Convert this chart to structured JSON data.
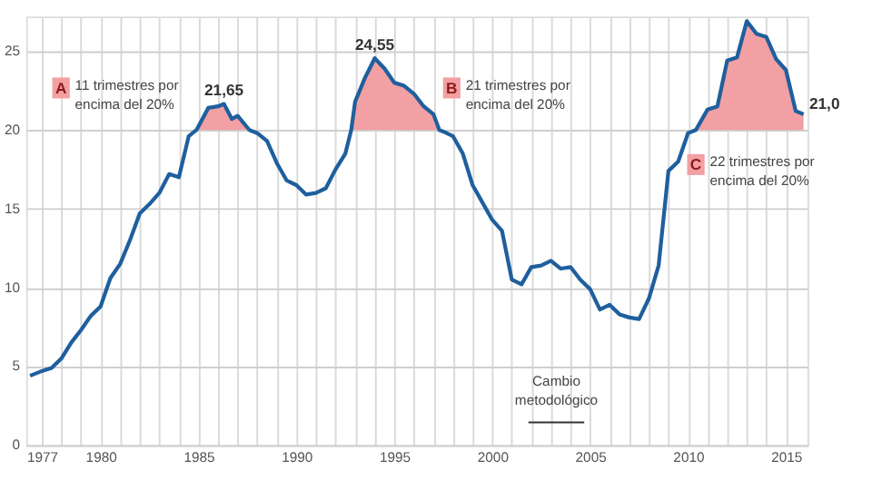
{
  "chart_data": {
    "type": "line",
    "x": [
      1976.4,
      1977.0,
      1977.5,
      1978.0,
      1978.5,
      1979.0,
      1979.5,
      1980.0,
      1980.5,
      1981.0,
      1981.5,
      1982.0,
      1982.5,
      1983.0,
      1983.5,
      1984.0,
      1984.5,
      1984.9,
      1985.5,
      1986.0,
      1986.3,
      1986.7,
      1987.0,
      1987.6,
      1988.0,
      1988.5,
      1989.0,
      1989.5,
      1990.0,
      1990.5,
      1991.0,
      1991.5,
      1992.0,
      1992.5,
      1992.8,
      1993.0,
      1993.5,
      1994.0,
      1994.5,
      1995.0,
      1995.5,
      1996.0,
      1996.5,
      1997.0,
      1997.3,
      1997.5,
      1998.0,
      1998.5,
      1999.0,
      1999.5,
      2000.0,
      2000.5,
      2001.0,
      2001.5,
      2002.0,
      2002.5,
      2003.0,
      2003.5,
      2004.0,
      2004.5,
      2005.0,
      2005.5,
      2006.0,
      2006.5,
      2007.0,
      2007.5,
      2008.0,
      2008.5,
      2009.0,
      2009.5,
      2010.0,
      2010.4,
      2011.0,
      2011.5,
      2012.0,
      2012.5,
      2013.0,
      2013.5,
      2014.0,
      2014.5,
      2015.0,
      2015.5,
      2015.9
    ],
    "series": [
      {
        "color": "#1f5f9e",
        "values": [
          4.4,
          4.7,
          4.9,
          5.5,
          6.5,
          7.3,
          8.2,
          8.8,
          10.6,
          11.5,
          13.0,
          14.7,
          15.3,
          16.0,
          17.2,
          17.0,
          19.6,
          20.0,
          21.4,
          21.5,
          21.65,
          20.7,
          20.9,
          20.0,
          19.8,
          19.3,
          17.9,
          16.8,
          16.5,
          15.9,
          16.0,
          16.3,
          17.5,
          18.5,
          20.0,
          21.8,
          23.3,
          24.55,
          23.9,
          23.0,
          22.8,
          22.3,
          21.5,
          21.0,
          20.0,
          19.9,
          19.6,
          18.5,
          16.5,
          15.4,
          14.3,
          13.6,
          10.5,
          10.2,
          11.3,
          11.4,
          11.7,
          11.2,
          11.3,
          10.5,
          9.9,
          8.6,
          8.9,
          8.3,
          8.1,
          8.0,
          9.3,
          11.4,
          17.4,
          18.0,
          19.8,
          20.0,
          21.3,
          21.5,
          24.4,
          24.6,
          26.9,
          26.1,
          25.9,
          24.5,
          23.8,
          21.2,
          21.0
        ],
        "lower": [
          null,
          null,
          null,
          null,
          null,
          null,
          null,
          null,
          null,
          null,
          null,
          null,
          null,
          null,
          null,
          null,
          null,
          20,
          20,
          20,
          20,
          20,
          20,
          20,
          null,
          null,
          null,
          null,
          null,
          null,
          null,
          null,
          null,
          null,
          20,
          20,
          20,
          20,
          20,
          20,
          20,
          20,
          20,
          20,
          20,
          null,
          null,
          null,
          null,
          null,
          null,
          null,
          null,
          null,
          null,
          null,
          null,
          null,
          null,
          null,
          null,
          null,
          null,
          null,
          null,
          null,
          null,
          null,
          null,
          null,
          null,
          20,
          20,
          20,
          20,
          20,
          20,
          20,
          20,
          20,
          20,
          20,
          20
        ],
        "upper": [
          null,
          null,
          null,
          null,
          null,
          null,
          null,
          null,
          null,
          null,
          null,
          null,
          null,
          null,
          null,
          null,
          null,
          20.0,
          21.4,
          21.5,
          21.65,
          20.7,
          20.9,
          20.0,
          null,
          null,
          null,
          null,
          null,
          null,
          null,
          null,
          null,
          null,
          20.0,
          21.8,
          23.3,
          24.55,
          23.9,
          23.0,
          22.8,
          22.3,
          21.5,
          21.0,
          20.0,
          null,
          null,
          null,
          null,
          null,
          null,
          null,
          null,
          null,
          null,
          null,
          null,
          null,
          null,
          null,
          null,
          null,
          null,
          null,
          null,
          null,
          null,
          null,
          null,
          null,
          null,
          20.0,
          21.3,
          21.5,
          24.4,
          24.6,
          26.9,
          26.1,
          25.9,
          24.5,
          23.8,
          21.2,
          21.0
        ]
      }
    ],
    "xlim": [
      1976.2,
      2016.1
    ],
    "xticks": [
      {
        "value": 1977,
        "label": "1977"
      },
      {
        "value": 1978,
        "label": null
      },
      {
        "value": 1979,
        "label": null
      },
      {
        "value": 1980,
        "label": "1980"
      },
      {
        "value": 1981,
        "label": null
      },
      {
        "value": 1982,
        "label": null
      },
      {
        "value": 1983,
        "label": null
      },
      {
        "value": 1984,
        "label": null
      },
      {
        "value": 1985,
        "label": "1985"
      },
      {
        "value": 1986,
        "label": null
      },
      {
        "value": 1987,
        "label": null
      },
      {
        "value": 1988,
        "label": null
      },
      {
        "value": 1989,
        "label": null
      },
      {
        "value": 1990,
        "label": "1990"
      },
      {
        "value": 1991,
        "label": null
      },
      {
        "value": 1992,
        "label": null
      },
      {
        "value": 1993,
        "label": null
      },
      {
        "value": 1994,
        "label": null
      },
      {
        "value": 1995,
        "label": "1995"
      },
      {
        "value": 1996,
        "label": null
      },
      {
        "value": 1997,
        "label": null
      },
      {
        "value": 1998,
        "label": null
      },
      {
        "value": 1999,
        "label": null
      },
      {
        "value": 2000,
        "label": "2000"
      },
      {
        "value": 2001,
        "label": null
      },
      {
        "value": 2002,
        "label": null
      },
      {
        "value": 2003,
        "label": null
      },
      {
        "value": 2004,
        "label": null
      },
      {
        "value": 2005,
        "label": "2005"
      },
      {
        "value": 2006,
        "label": null
      },
      {
        "value": 2007,
        "label": null
      },
      {
        "value": 2008,
        "label": null
      },
      {
        "value": 2009,
        "label": null
      },
      {
        "value": 2010,
        "label": "2010"
      },
      {
        "value": 2011,
        "label": null
      },
      {
        "value": 2012,
        "label": null
      },
      {
        "value": 2013,
        "label": null
      },
      {
        "value": 2014,
        "label": null
      },
      {
        "value": 2015,
        "label": "2015"
      }
    ],
    "ylim": [
      0,
      27.2
    ],
    "yticks": [
      0,
      5,
      10,
      15,
      20,
      25
    ],
    "grid": true,
    "annotations": [
      {
        "text": "21,65",
        "x": 1986.3,
        "y": 21.65
      },
      {
        "text": "24,55",
        "x": 1994.0,
        "y": 24.55
      },
      {
        "text": "21,0",
        "x": 2015.9,
        "y": 21.0
      },
      "A",
      "11 trimestres por\nencima del 20%",
      "B",
      "21 trimestres por\nencima del 20%",
      "C",
      "22 trimestres por\nencima del 20%",
      "Cambio\nmetodológico"
    ]
  }
}
